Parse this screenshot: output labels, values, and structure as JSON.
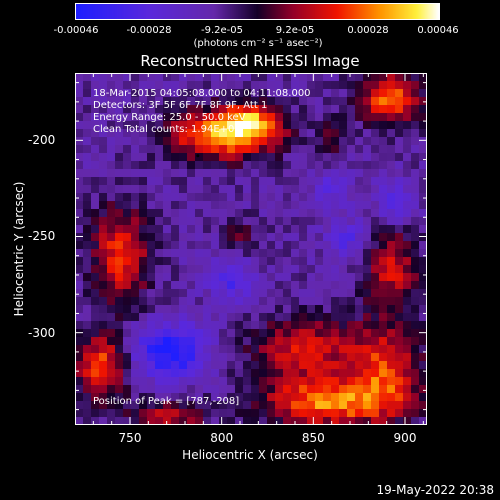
{
  "colorbar": {
    "ticks": [
      "-0.00046",
      "-0.00028",
      "-9.2e-05",
      "9.2e-05",
      "0.00028",
      "0.00046"
    ],
    "unit": "(photons cm⁻² s⁻¹ asec⁻²)"
  },
  "chart_data": {
    "type": "heatmap",
    "title": "Reconstructed RHESSI Image",
    "xlabel": "Heliocentric X (arcsec)",
    "ylabel": "Heliocentric Y (arcsec)",
    "xlim": [
      720,
      912
    ],
    "ylim": [
      -348,
      -165
    ],
    "xticks": [
      "750",
      "800",
      "850",
      "900"
    ],
    "yticks": [
      "-200",
      "-250",
      "-300"
    ],
    "zlim": [
      -0.00046,
      0.00046
    ],
    "info_lines": [
      "18-Mar-2015 04:05:08.000 to 04:11:08.000",
      "Detectors: 3F 5F 6F 7F 8F 9F, Att 1",
      "Energy Range: 25.0 - 50.0 keV",
      "Clean     Total counts: 1.94E+04"
    ],
    "peak_text": "Position of Peak = [787,-208]",
    "peak_position": [
      787,
      -208
    ],
    "blobs": [
      {
        "x": 800,
        "y": -197,
        "sx": 20,
        "sy": 9,
        "amp": 0.00046
      },
      {
        "x": 817,
        "y": -190,
        "sx": 12,
        "sy": 7,
        "amp": 0.0003
      },
      {
        "x": 745,
        "y": -260,
        "sx": 11,
        "sy": 18,
        "amp": 0.00033
      },
      {
        "x": 734,
        "y": -318,
        "sx": 10,
        "sy": 12,
        "amp": 0.00036
      },
      {
        "x": 845,
        "y": -308,
        "sx": 21,
        "sy": 11,
        "amp": 0.00028
      },
      {
        "x": 890,
        "y": -318,
        "sx": 14,
        "sy": 16,
        "amp": 0.0003
      },
      {
        "x": 893,
        "y": -267,
        "sx": 11,
        "sy": 15,
        "amp": 0.00026
      },
      {
        "x": 892,
        "y": -178,
        "sx": 12,
        "sy": 10,
        "amp": 0.00038
      },
      {
        "x": 858,
        "y": -336,
        "sx": 26,
        "sy": 9,
        "amp": 0.0004
      },
      {
        "x": 770,
        "y": -344,
        "sx": 14,
        "sy": 6,
        "amp": 0.00026
      },
      {
        "x": 810,
        "y": -250,
        "sx": 7,
        "sy": 7,
        "amp": 0.00014
      },
      {
        "x": 860,
        "y": -200,
        "sx": 5,
        "sy": 9,
        "amp": 0.00012
      },
      {
        "x": 772,
        "y": -310,
        "sx": 14,
        "sy": 10,
        "amp": -0.00036
      },
      {
        "x": 805,
        "y": -272,
        "sx": 9,
        "sy": 9,
        "amp": -0.0002
      },
      {
        "x": 868,
        "y": -252,
        "sx": 8,
        "sy": 8,
        "amp": -0.00018
      },
      {
        "x": 860,
        "y": -225,
        "sx": 7,
        "sy": 7,
        "amp": -0.00016
      },
      {
        "x": 895,
        "y": -232,
        "sx": 8,
        "sy": 8,
        "amp": -0.00018
      }
    ]
  },
  "timestamp": "19-May-2022 20:38"
}
